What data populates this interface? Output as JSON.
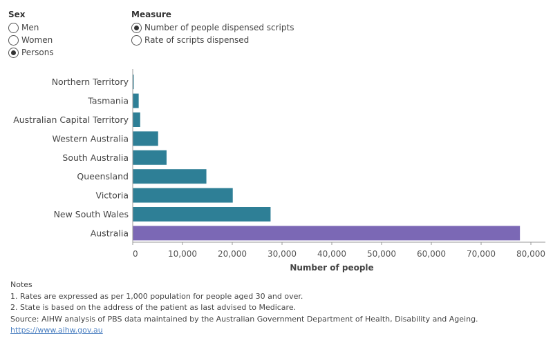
{
  "filters": {
    "sex": {
      "title": "Sex",
      "options": [
        {
          "label": "Men",
          "selected": false
        },
        {
          "label": "Women",
          "selected": false
        },
        {
          "label": "Persons",
          "selected": true
        }
      ]
    },
    "measure": {
      "title": "Measure",
      "options": [
        {
          "label": "Number of people dispensed scripts",
          "selected": true
        },
        {
          "label": "Rate of scripts dispensed",
          "selected": false
        }
      ]
    }
  },
  "chart_data": {
    "type": "bar",
    "orientation": "horizontal",
    "xlabel": "Number of people",
    "xlim": [
      0,
      80000
    ],
    "xticks": [
      0,
      10000,
      20000,
      30000,
      40000,
      50000,
      60000,
      70000,
      80000
    ],
    "xtick_labels": [
      "0",
      "10,000",
      "20,000",
      "30,000",
      "40,000",
      "50,000",
      "60,000",
      "70,000",
      "80,000"
    ],
    "grid": false,
    "categories": [
      "Northern Territory",
      "Tasmania",
      "Australian Capital Territory",
      "Western Australia",
      "South Australia",
      "Queensland",
      "Victoria",
      "New South Wales",
      "Australia"
    ],
    "values": [
      200,
      1200,
      1500,
      5100,
      6800,
      14800,
      20100,
      27700,
      77800
    ],
    "colors": {
      "state": "#2e7f96",
      "national": "#7b68b5"
    }
  },
  "notes": {
    "heading": "Notes",
    "lines": [
      "1. Rates are expressed as per 1,000 population for people aged 30 and over.",
      "2. State is based on the address of the patient as last advised to Medicare.",
      "Source: AIHW analysis of PBS data maintained by the Australian Government Department of Health, Disability and Ageing."
    ],
    "link": "https://www.aihw.gov.au"
  }
}
